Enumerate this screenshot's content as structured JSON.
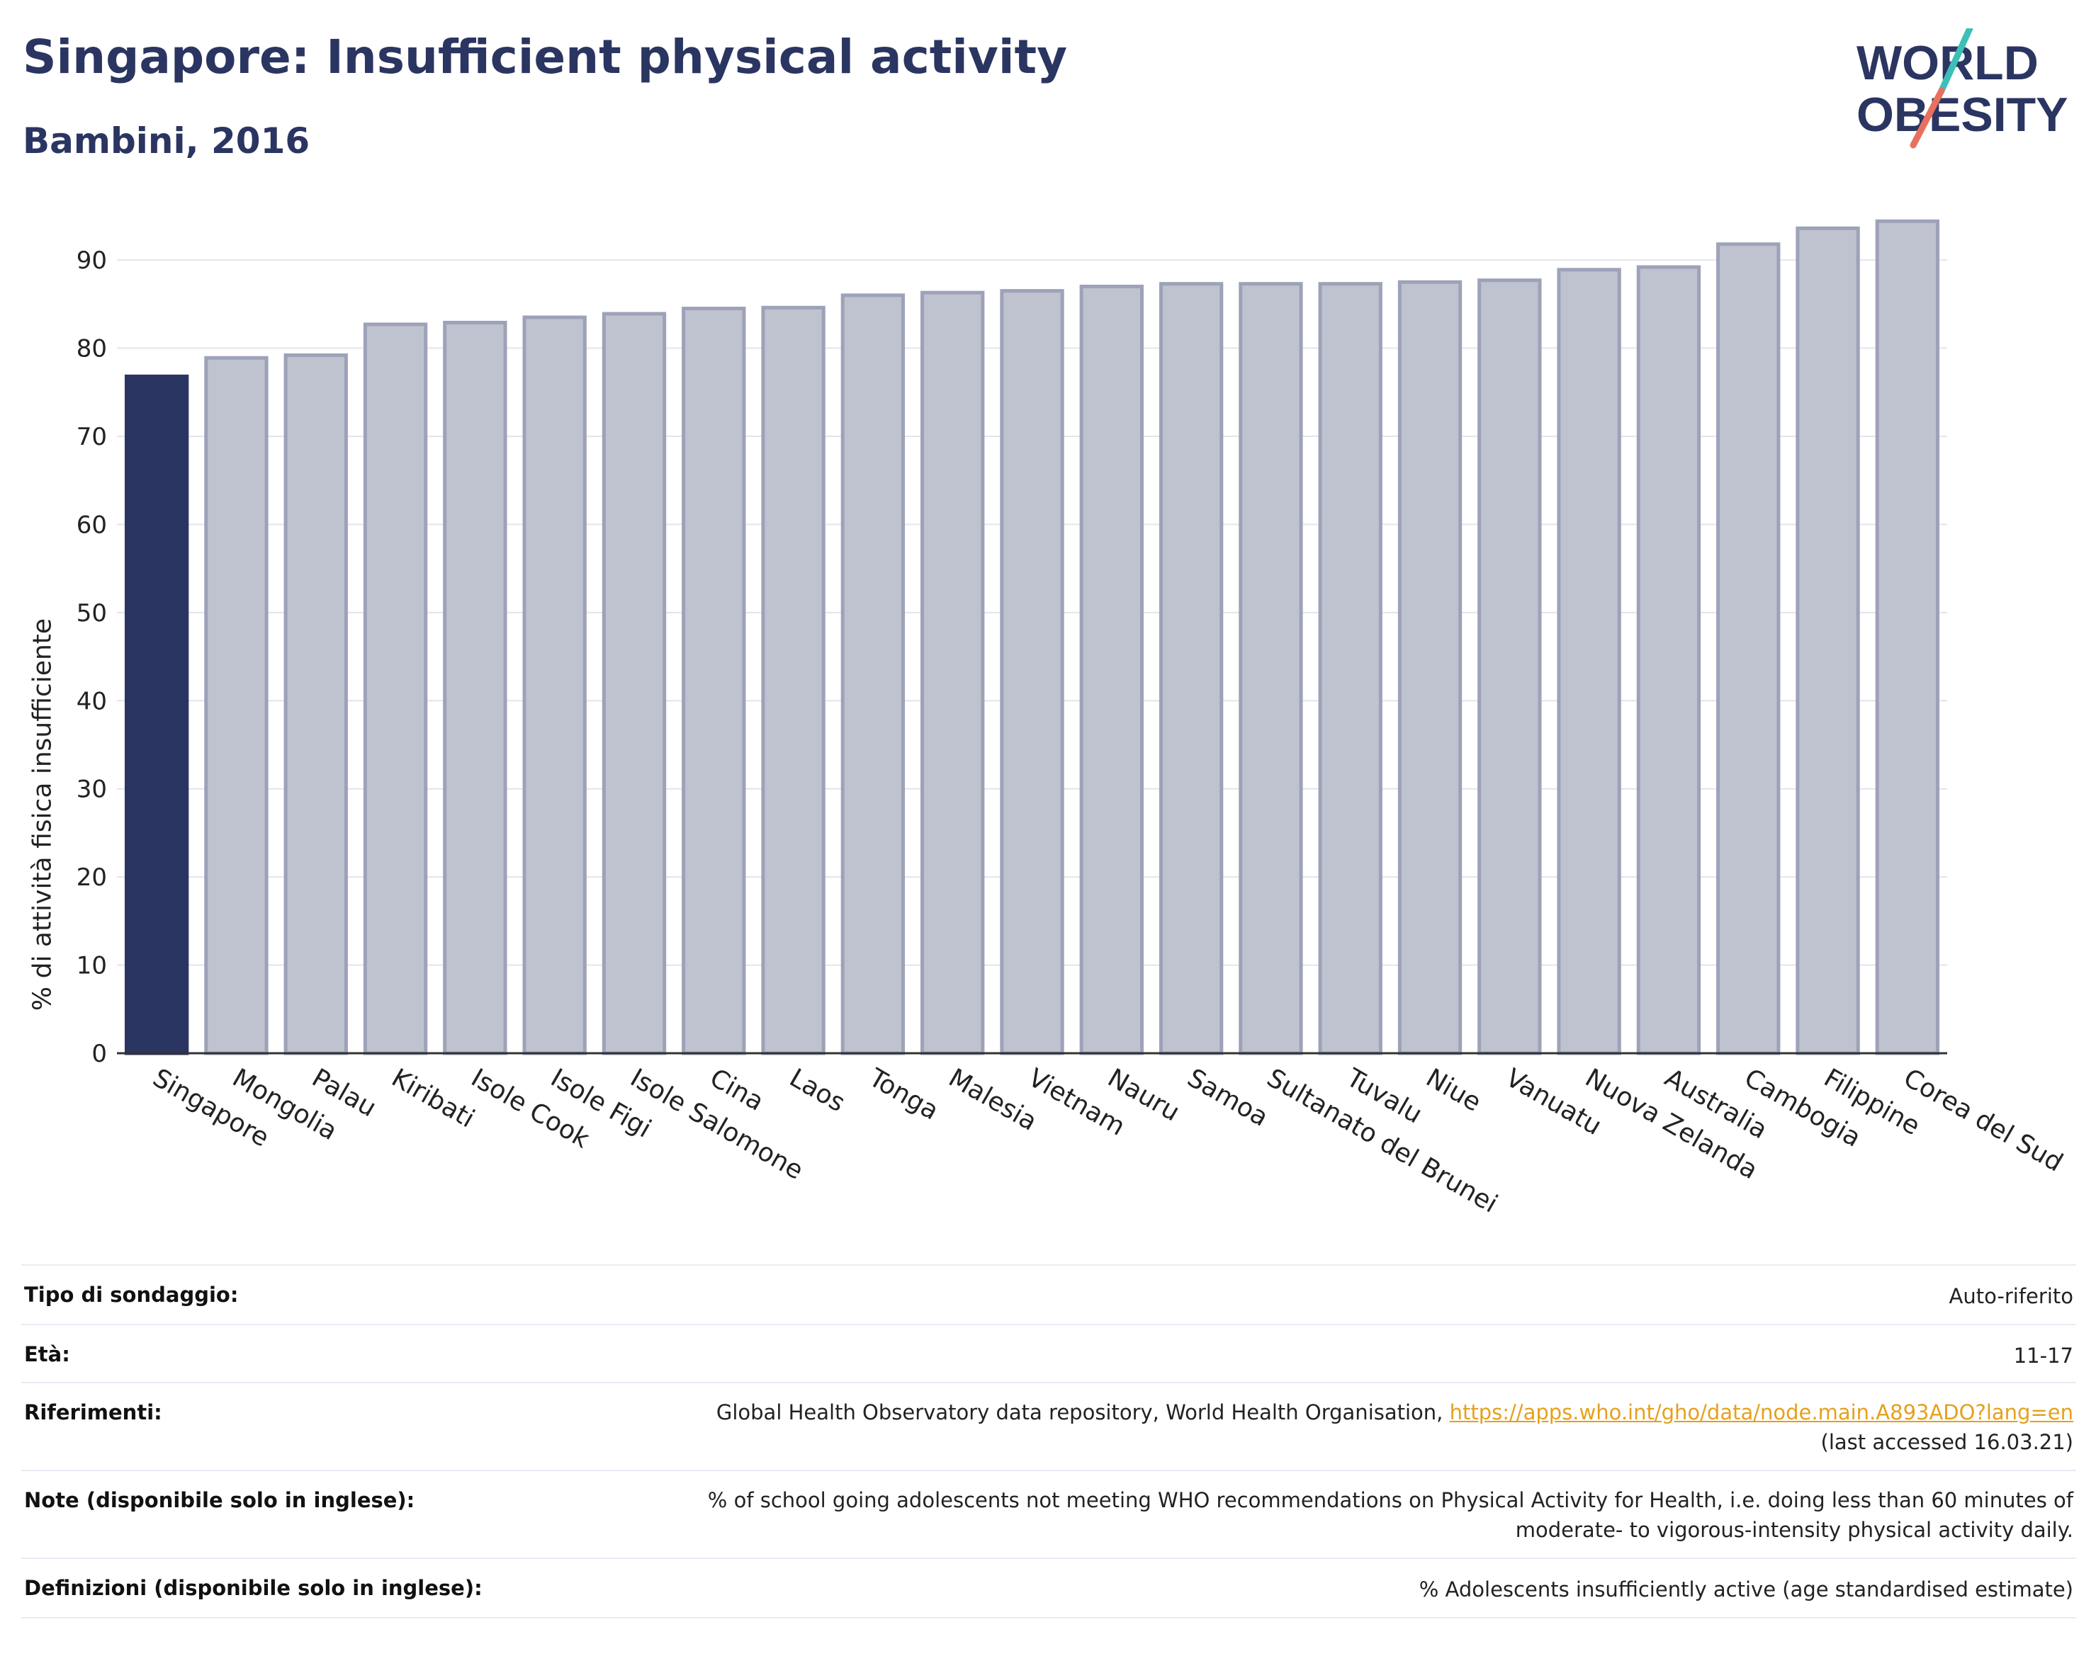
{
  "header": {
    "title": "Singapore: Insufficient physical activity",
    "subtitle": "Bambini, 2016",
    "logo_line1": "WORLD",
    "logo_line2": "OBESITY"
  },
  "colors": {
    "highlight": "#2b3561",
    "bar_fill": "#bfc2cf",
    "bar_stroke": "#9da2b8",
    "grid": "#e3e5ec",
    "logo_teal": "#3dbfb8",
    "logo_coral": "#e8705e"
  },
  "chart_data": {
    "type": "bar",
    "title": "Singapore: Insufficient physical activity",
    "subtitle": "Bambini, 2016",
    "xlabel": "",
    "ylabel": "% di attività fisica insufficiente",
    "ylim": [
      0,
      97
    ],
    "yticks": [
      0,
      10,
      20,
      30,
      40,
      50,
      60,
      70,
      80,
      90
    ],
    "grid": true,
    "highlight_category": "Singapore",
    "categories": [
      "Singapore",
      "Mongolia",
      "Palau",
      "Kiribati",
      "Isole Cook",
      "Isole Figi",
      "Isole Salomone",
      "Cina",
      "Laos",
      "Tonga",
      "Malesia",
      "Vietnam",
      "Nauru",
      "Samoa",
      "Sultanato del Brunei",
      "Tuvalu",
      "Niue",
      "Vanuatu",
      "Nuova Zelanda",
      "Australia",
      "Cambogia",
      "Filippine",
      "Corea del Sud"
    ],
    "values": [
      76.8,
      78.9,
      79.2,
      82.7,
      82.9,
      83.5,
      83.9,
      84.5,
      84.6,
      86.0,
      86.3,
      86.5,
      87.0,
      87.3,
      87.3,
      87.3,
      87.5,
      87.7,
      88.9,
      89.2,
      91.8,
      93.6,
      94.4
    ]
  },
  "info": {
    "survey_label": "Tipo di sondaggio:",
    "survey_value": "Auto-riferito",
    "age_label": "Età:",
    "age_value": "11-17",
    "ref_label": "Riferimenti:",
    "ref_text": "Global Health Observatory data repository, World Health Organisation, ",
    "ref_link": "https://apps.who.int/gho/data/node.main.A893ADO?lang=en",
    "ref_accessed": "(last accessed 16.03.21)",
    "notes_label": "Note (disponibile solo in inglese):",
    "notes_line1": "% of school going adolescents not meeting WHO recommendations on Physical Activity for Health, i.e. doing less than 60 minutes of",
    "notes_line2": "moderate- to vigorous-intensity physical activity daily.",
    "def_label": "Definizioni (disponibile solo in inglese):",
    "def_value": "% Adolescents insufficiently active (age standardised estimate)"
  }
}
